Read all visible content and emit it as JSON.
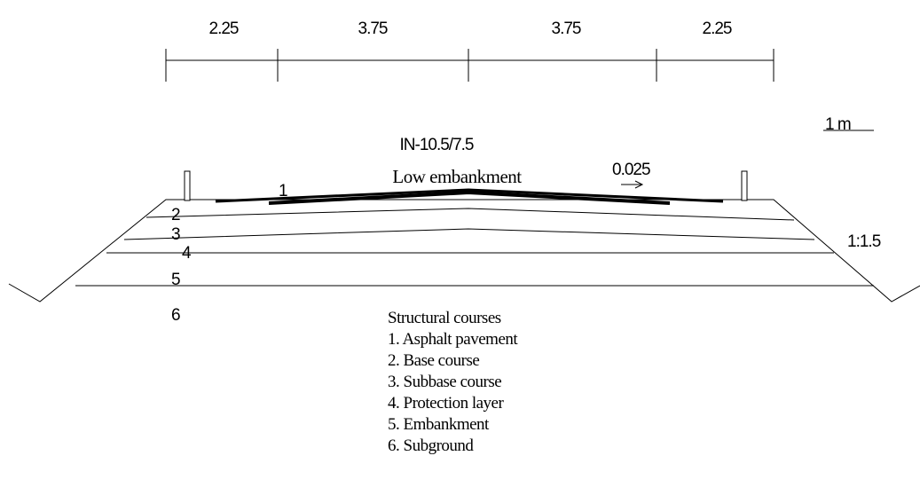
{
  "dimensions": [
    "2.25",
    "3.75",
    "3.75",
    "2.25"
  ],
  "scale_bar": "1 m",
  "section": {
    "code": "IN-10.5/7.5",
    "name": "Low embankment"
  },
  "crossfall": "0.025",
  "slope": "1:1.5",
  "layer_numbers": [
    "1",
    "2",
    "3",
    "4",
    "5",
    "6"
  ],
  "legend": {
    "title": "Structural courses",
    "items": [
      "1. Asphalt pavement",
      "2. Base course",
      "3. Subbase course",
      "4. Protection layer",
      "5. Embankment",
      "6. Subground"
    ]
  }
}
